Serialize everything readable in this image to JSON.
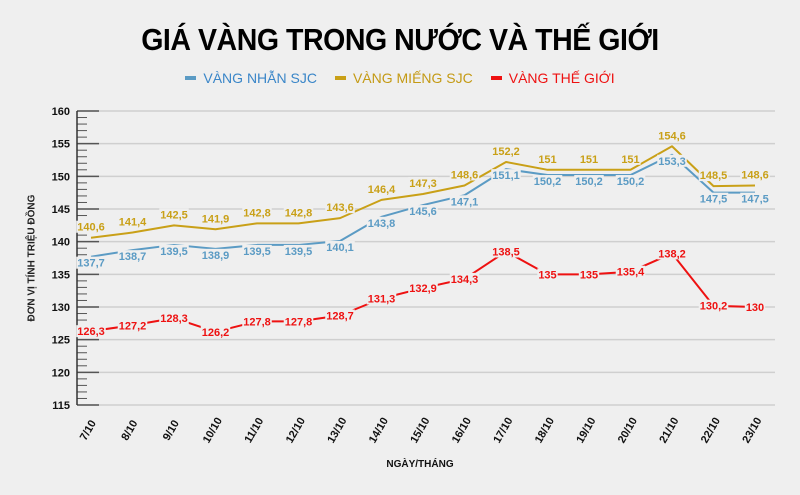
{
  "title": "GIÁ VÀNG TRONG NƯỚC VÀ THẾ GIỚI",
  "legend": [
    {
      "label": "VÀNG NHẪN SJC",
      "color": "#5b9bc4",
      "text_color": "#3a86c8"
    },
    {
      "label": "VÀNG MIẾNG SJC",
      "color": "#c9a017",
      "text_color": "#c49a14"
    },
    {
      "label": "VÀNG THẾ GIỚI",
      "color": "#ee1111",
      "text_color": "#ee1111"
    }
  ],
  "ylabel": "ĐƠN VỊ TÍNH TRIỆU ĐỒNG",
  "xlabel": "NGÀY/THÁNG",
  "chart_data": {
    "type": "line",
    "title": "GIÁ VÀNG TRONG NƯỚC VÀ THẾ GIỚI",
    "xlabel": "NGÀY/THÁNG",
    "ylabel": "ĐƠN VỊ TÍNH TRIỆU ĐỒNG",
    "ylim": [
      115,
      160
    ],
    "yticks": [
      115,
      120,
      125,
      130,
      135,
      140,
      145,
      150,
      155,
      160
    ],
    "grid": "horizontal",
    "legend_position": "top",
    "categories": [
      "7/10",
      "8/10",
      "9/10",
      "10/10",
      "11/10",
      "12/10",
      "13/10",
      "14/10",
      "15/10",
      "16/10",
      "17/10",
      "18/10",
      "19/10",
      "20/10",
      "21/10",
      "22/10",
      "23/10"
    ],
    "series": [
      {
        "name": "VÀNG NHẪN SJC",
        "color": "#5b9bc4",
        "values": [
          137.7,
          138.7,
          139.5,
          138.9,
          139.5,
          139.5,
          140.1,
          143.8,
          145.6,
          147.1,
          151.1,
          150.2,
          150.2,
          150.2,
          153.3,
          147.5,
          147.5
        ],
        "labels": [
          "137,7",
          "138,7",
          "139,5",
          "138,9",
          "139,5",
          "139,5",
          "140,1",
          "143,8",
          "145,6",
          "147,1",
          "151,1",
          "150,2",
          "150,2",
          "150,2",
          "153,3",
          "147,5",
          "147,5"
        ]
      },
      {
        "name": "VÀNG MIẾNG SJC",
        "color": "#c9a017",
        "values": [
          140.6,
          141.4,
          142.5,
          141.9,
          142.8,
          142.8,
          143.6,
          146.4,
          147.3,
          148.6,
          152.2,
          151,
          151,
          151,
          154.6,
          148.5,
          148.6
        ],
        "labels": [
          "140,6",
          "141,4",
          "142,5",
          "141,9",
          "142,8",
          "142,8",
          "143,6",
          "146,4",
          "147,3",
          "148,6",
          "152,2",
          "151",
          "151",
          "151",
          "154,6",
          "148,5",
          "148,6"
        ]
      },
      {
        "name": "VÀNG THẾ GIỚI",
        "color": "#ee1111",
        "values": [
          126.3,
          127.2,
          128.3,
          126.2,
          127.8,
          127.8,
          128.7,
          131.3,
          132.9,
          134.3,
          138.5,
          135,
          135,
          135.4,
          138.2,
          130.2,
          130
        ],
        "labels": [
          "126,3",
          "127,2",
          "128,3",
          "126,2",
          "127,8",
          "127,8",
          "128,7",
          "131,3",
          "132,9",
          "134,3",
          "138,5",
          "135",
          "135",
          "135,4",
          "138,2",
          "130,2",
          "130"
        ]
      }
    ]
  }
}
